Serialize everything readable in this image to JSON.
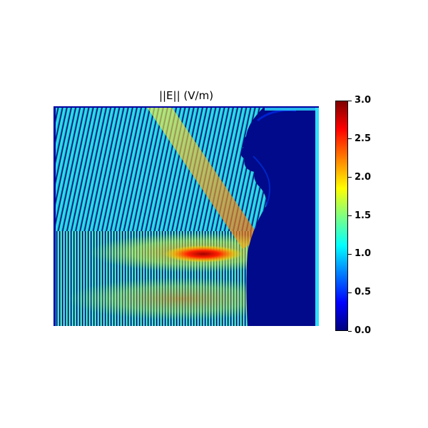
{
  "chart_data": {
    "type": "heatmap",
    "title": "||E|| (V/m)",
    "xlabel": "",
    "ylabel": "",
    "axes_visible": false,
    "colormap": "jet",
    "colorbar": {
      "range": [
        0.0,
        3.0
      ],
      "ticks": [
        0.0,
        0.5,
        1.0,
        1.5,
        2.0,
        2.5,
        3.0
      ],
      "tick_labels": [
        "0.0",
        "0.5",
        "1.0",
        "1.5",
        "2.0",
        "2.5",
        "3.0"
      ],
      "placement": "right"
    },
    "description_values": {
      "background_field": 1.0,
      "hotspot_peak": 3.0,
      "head_region_field": 0.0
    }
  }
}
